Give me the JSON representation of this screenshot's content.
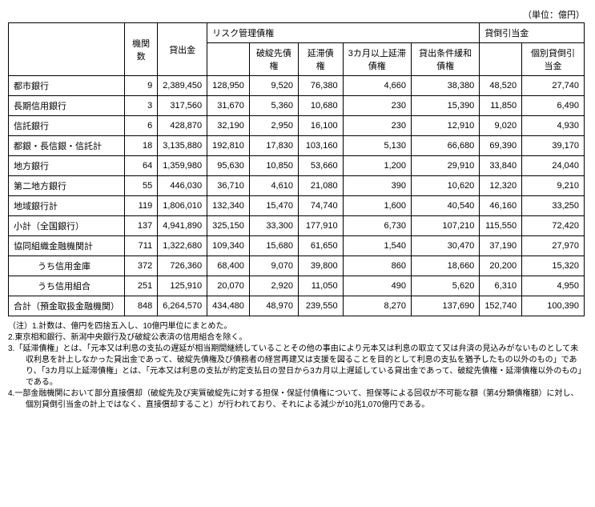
{
  "unit_label": "（単位：億円）",
  "header": {
    "count": "機関数",
    "loans": "貸出金",
    "risk_group": "リスク管理債権",
    "risk_bankrupt": "破綻先債権",
    "risk_overdue": "延滞債権",
    "risk_3mo": "3カ月以上延滞債権",
    "risk_restructured": "貸出条件緩和債権",
    "provision_group": "貸倒引当金",
    "provision_indiv": "個別貸倒引当金"
  },
  "rows": [
    {
      "label": "都市銀行",
      "count": "9",
      "loans": "2,389,450",
      "risk_total": "128,950",
      "bankrupt": "9,520",
      "overdue": "76,380",
      "mo3": "4,660",
      "restr": "38,380",
      "prov_total": "48,520",
      "prov_indiv": "27,740",
      "indent": false
    },
    {
      "label": "長期信用銀行",
      "count": "3",
      "loans": "317,560",
      "risk_total": "31,670",
      "bankrupt": "5,360",
      "overdue": "10,680",
      "mo3": "230",
      "restr": "15,390",
      "prov_total": "11,850",
      "prov_indiv": "6,490",
      "indent": false
    },
    {
      "label": "信託銀行",
      "count": "6",
      "loans": "428,870",
      "risk_total": "32,190",
      "bankrupt": "2,950",
      "overdue": "16,100",
      "mo3": "230",
      "restr": "12,910",
      "prov_total": "9,020",
      "prov_indiv": "4,930",
      "indent": false
    },
    {
      "label": "都銀・長信銀・信託計",
      "count": "18",
      "loans": "3,135,880",
      "risk_total": "192,810",
      "bankrupt": "17,830",
      "overdue": "103,160",
      "mo3": "5,130",
      "restr": "66,680",
      "prov_total": "69,390",
      "prov_indiv": "39,170",
      "indent": false
    },
    {
      "label": "地方銀行",
      "count": "64",
      "loans": "1,359,980",
      "risk_total": "95,630",
      "bankrupt": "10,850",
      "overdue": "53,660",
      "mo3": "1,200",
      "restr": "29,910",
      "prov_total": "33,840",
      "prov_indiv": "24,040",
      "indent": false
    },
    {
      "label": "第二地方銀行",
      "count": "55",
      "loans": "446,030",
      "risk_total": "36,710",
      "bankrupt": "4,610",
      "overdue": "21,080",
      "mo3": "390",
      "restr": "10,620",
      "prov_total": "12,320",
      "prov_indiv": "9,210",
      "indent": false
    },
    {
      "label": "地域銀行計",
      "count": "119",
      "loans": "1,806,010",
      "risk_total": "132,340",
      "bankrupt": "15,470",
      "overdue": "74,740",
      "mo3": "1,600",
      "restr": "40,540",
      "prov_total": "46,160",
      "prov_indiv": "33,250",
      "indent": false
    },
    {
      "label": "小計（全国銀行）",
      "count": "137",
      "loans": "4,941,890",
      "risk_total": "325,150",
      "bankrupt": "33,300",
      "overdue": "177,910",
      "mo3": "6,730",
      "restr": "107,210",
      "prov_total": "115,550",
      "prov_indiv": "72,420",
      "indent": false
    },
    {
      "label": "協同組織金融機関計",
      "count": "711",
      "loans": "1,322,680",
      "risk_total": "109,340",
      "bankrupt": "15,680",
      "overdue": "61,650",
      "mo3": "1,540",
      "restr": "30,470",
      "prov_total": "37,190",
      "prov_indiv": "27,970",
      "indent": false
    },
    {
      "label": "うち信用金庫",
      "count": "372",
      "loans": "726,360",
      "risk_total": "68,400",
      "bankrupt": "9,070",
      "overdue": "39,800",
      "mo3": "860",
      "restr": "18,660",
      "prov_total": "20,200",
      "prov_indiv": "15,320",
      "indent": true
    },
    {
      "label": "うち信用組合",
      "count": "251",
      "loans": "125,910",
      "risk_total": "20,070",
      "bankrupt": "2,920",
      "overdue": "11,050",
      "mo3": "490",
      "restr": "5,620",
      "prov_total": "6,310",
      "prov_indiv": "4,950",
      "indent": true
    },
    {
      "label": "合計（預金取扱金融機関）",
      "count": "848",
      "loans": "6,264,570",
      "risk_total": "434,480",
      "bankrupt": "48,970",
      "overdue": "239,550",
      "mo3": "8,270",
      "restr": "137,690",
      "prov_total": "152,740",
      "prov_indiv": "100,390",
      "indent": false
    }
  ],
  "notes": [
    "（注）1.計数は、億円を四捨五入し、10億円単位にまとめた。",
    "2.東京相和銀行、新潟中央銀行及び破綻公表済の信用組合を除く。",
    "3.「延滞債権」とは、「元本又は利息の支払の遅延が相当期間継続していることその他の事由により元本又は利息の取立て又は弁済の見込みがないものとして未収利息を計上しなかった貸出金であって、破綻先債権及び債務者の経営再建又は支援を図ることを目的として利息の支払を猶予したもの以外のもの」であり、「3カ月以上延滞債権」とは、「元本又は利息の支払が約定支払日の翌日から3カ月以上遅延している貸出金であって、破綻先債権・延滞債権以外のもの」である。",
    "4.一部金融機関において部分直接償却（破綻先及び実質破綻先に対する担保・保証付債権について、担保等による回収が不可能な額（第4分類債権額）に対し、個別貸倒引当金の計上ではなく、直接償却すること）が行われており、それによる減少が10兆1,070億円である。"
  ]
}
